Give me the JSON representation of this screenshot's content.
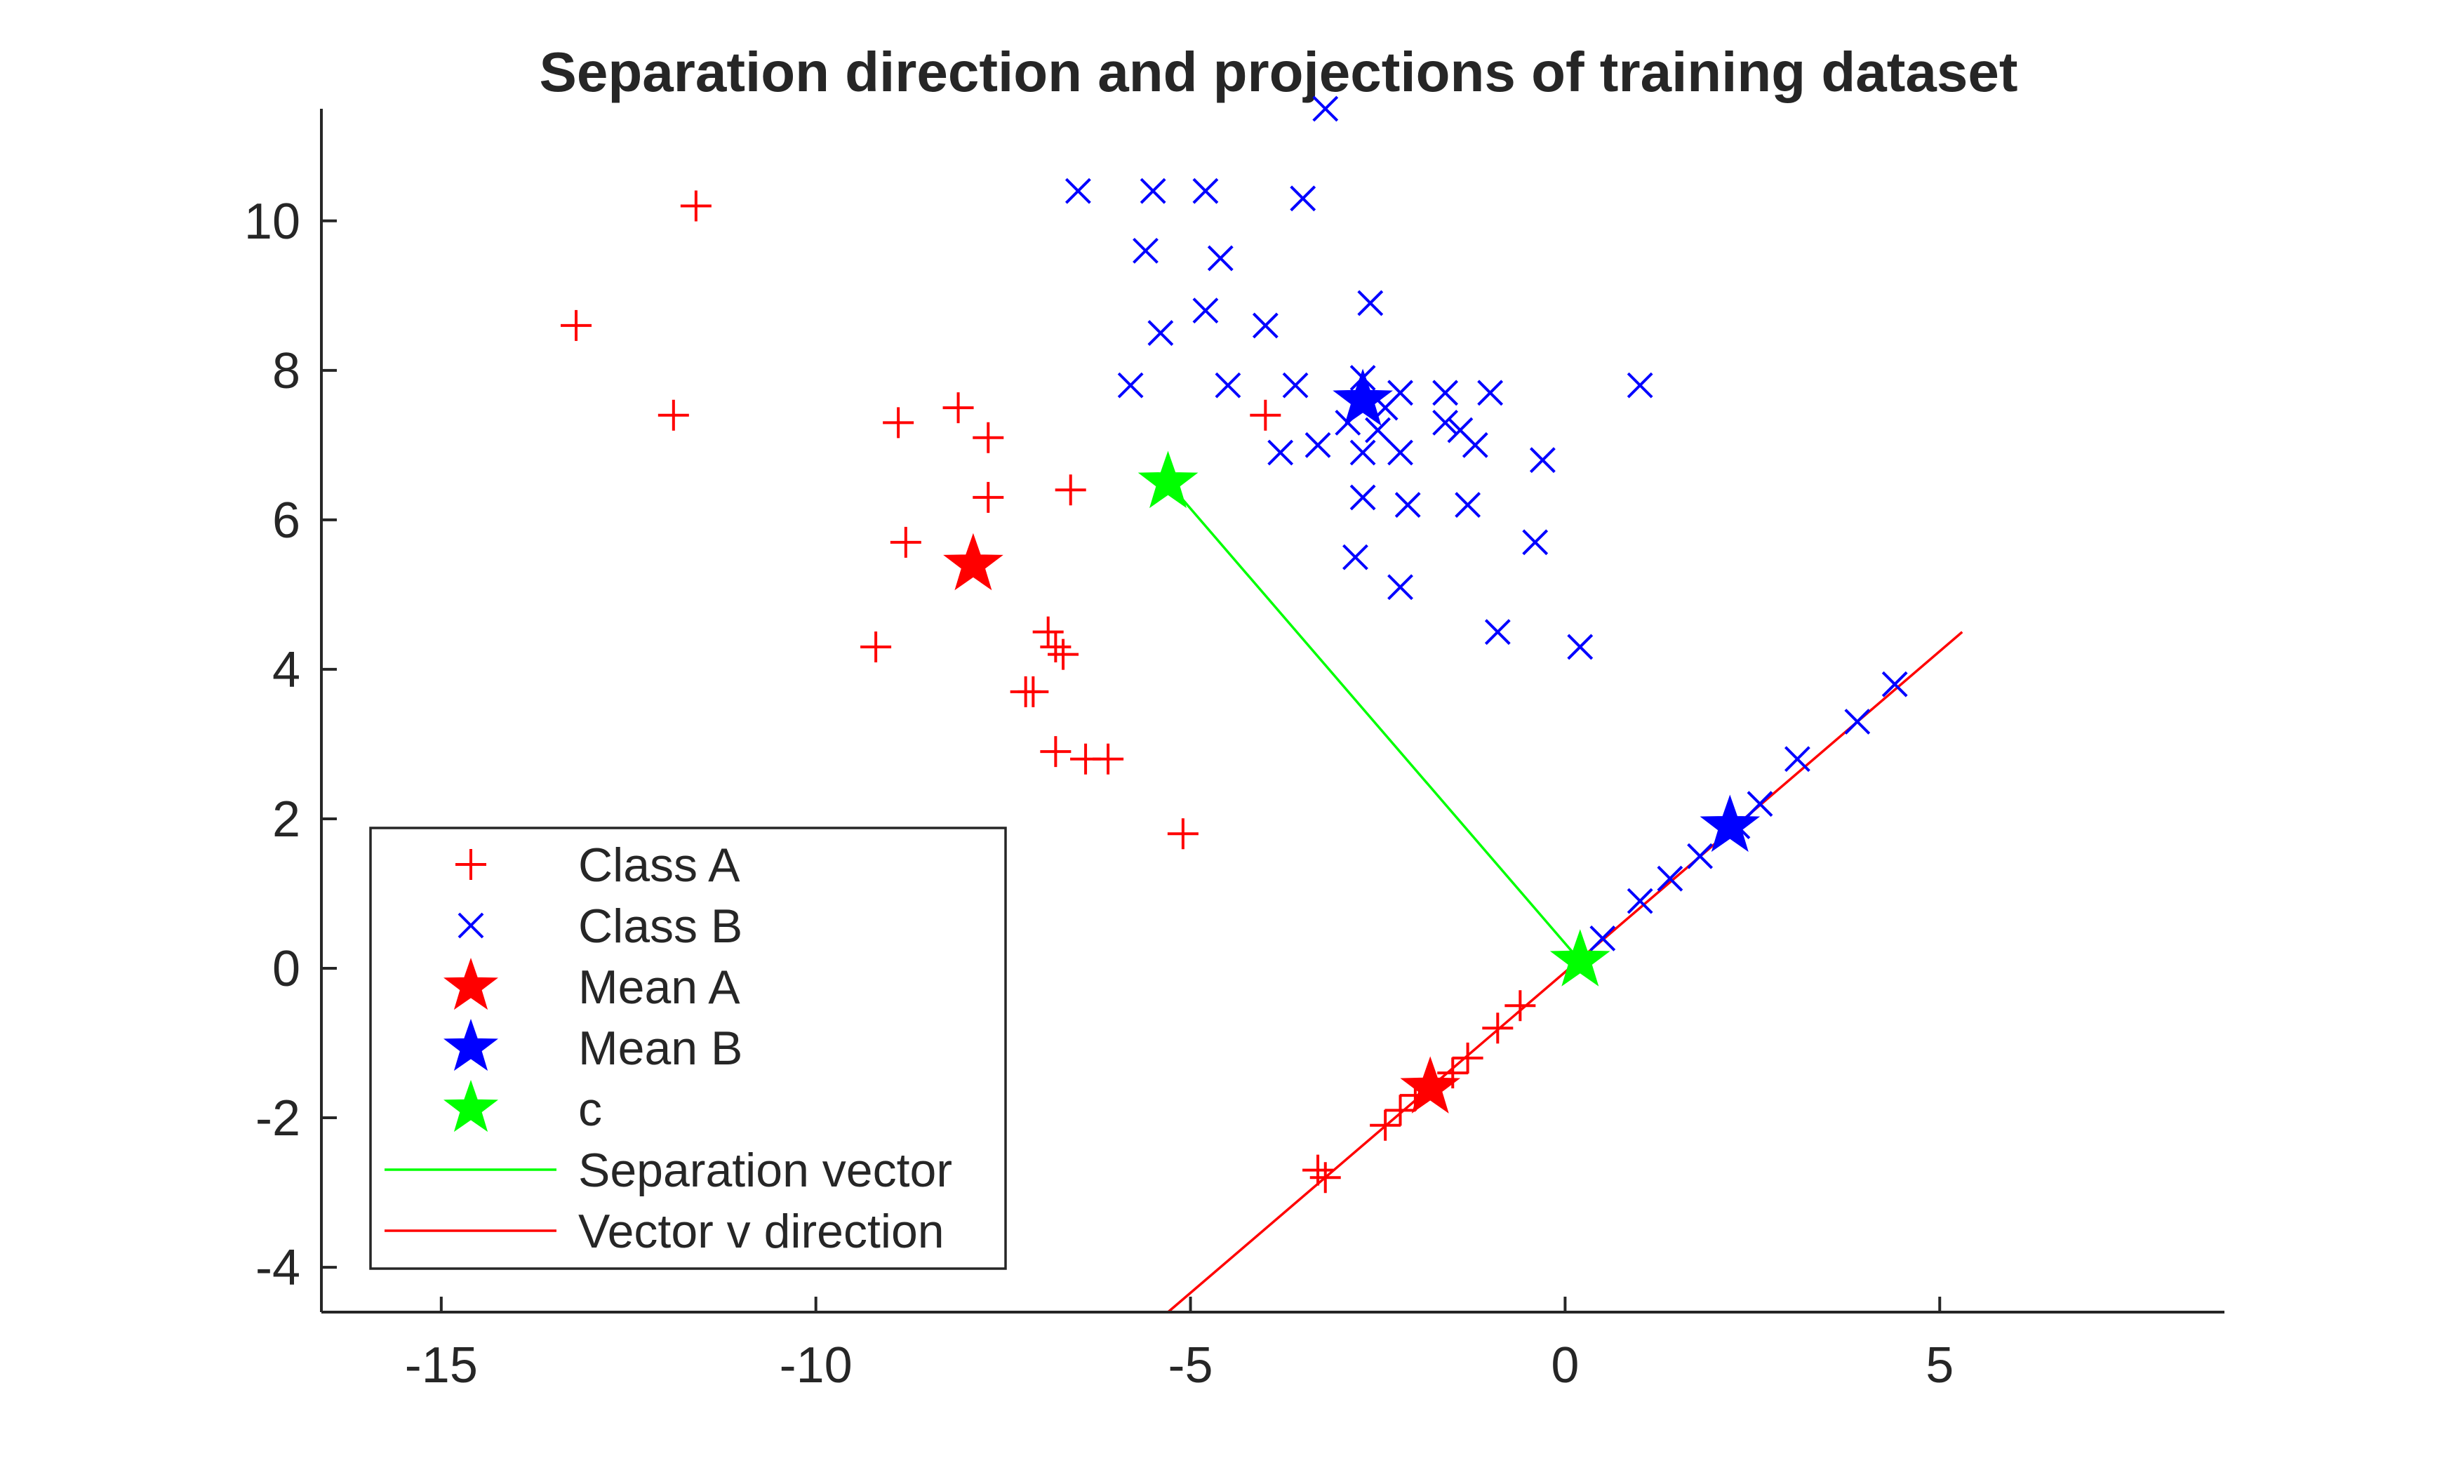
{
  "chart_data": {
    "type": "scatter",
    "title": "Separation direction and projections of training dataset",
    "xlabel": "",
    "ylabel": "",
    "xlim": [
      -16.6,
      8.8
    ],
    "ylim": [
      -4.6,
      11.5
    ],
    "xticks": [
      -15,
      -10,
      -5,
      0,
      5
    ],
    "yticks": [
      -4,
      -2,
      0,
      2,
      4,
      6,
      8,
      10
    ],
    "xtick_labels": [
      "-15",
      "-10",
      "-5",
      "0",
      "5"
    ],
    "ytick_labels": [
      "-4",
      "-2",
      "0",
      "2",
      "4",
      "6",
      "8",
      "10"
    ],
    "grid": false,
    "legend_position": "lower-left",
    "series": [
      {
        "name": "Class A",
        "marker": "plus",
        "color": "#ff0000",
        "points": [
          [
            -11.6,
            10.2
          ],
          [
            -13.2,
            8.6
          ],
          [
            -11.9,
            7.4
          ],
          [
            -8.9,
            7.3
          ],
          [
            -8.1,
            7.5
          ],
          [
            -7.7,
            7.1
          ],
          [
            -7.7,
            6.3
          ],
          [
            -6.6,
            6.4
          ],
          [
            -8.8,
            5.7
          ],
          [
            -9.2,
            4.3
          ],
          [
            -6.9,
            4.5
          ],
          [
            -6.8,
            4.3
          ],
          [
            -6.7,
            4.2
          ],
          [
            -7.1,
            3.7
          ],
          [
            -7.2,
            3.7
          ],
          [
            -6.8,
            2.9
          ],
          [
            -6.4,
            2.8
          ],
          [
            -6.1,
            2.8
          ],
          [
            -5.1,
            1.8
          ],
          [
            -4.0,
            7.4
          ],
          [
            -3.3,
            -2.7
          ],
          [
            -3.2,
            -2.8
          ],
          [
            -2.4,
            -2.1
          ],
          [
            -2.2,
            -1.9
          ],
          [
            -2.0,
            -1.7
          ],
          [
            -1.5,
            -1.4
          ],
          [
            -1.3,
            -1.2
          ],
          [
            -0.9,
            -0.8
          ],
          [
            -0.6,
            -0.5
          ]
        ]
      },
      {
        "name": "Class B",
        "marker": "x",
        "color": "#0000ff",
        "points": [
          [
            -3.2,
            11.5
          ],
          [
            -6.5,
            10.4
          ],
          [
            -5.5,
            10.4
          ],
          [
            -4.8,
            10.4
          ],
          [
            -3.5,
            10.3
          ],
          [
            -5.6,
            9.6
          ],
          [
            -4.6,
            9.5
          ],
          [
            -2.6,
            8.9
          ],
          [
            -4.8,
            8.8
          ],
          [
            -4.0,
            8.6
          ],
          [
            -5.4,
            8.5
          ],
          [
            -5.8,
            7.8
          ],
          [
            -4.5,
            7.8
          ],
          [
            -3.6,
            7.8
          ],
          [
            -2.7,
            7.9
          ],
          [
            -2.4,
            7.5
          ],
          [
            -2.2,
            7.7
          ],
          [
            -1.6,
            7.7
          ],
          [
            -1.0,
            7.7
          ],
          [
            1.0,
            7.8
          ],
          [
            -2.9,
            7.3
          ],
          [
            -2.5,
            7.2
          ],
          [
            -1.6,
            7.3
          ],
          [
            -1.4,
            7.2
          ],
          [
            -1.2,
            7.0
          ],
          [
            -3.3,
            7.0
          ],
          [
            -3.8,
            6.9
          ],
          [
            -2.7,
            6.9
          ],
          [
            -2.2,
            6.9
          ],
          [
            -0.3,
            6.8
          ],
          [
            -2.7,
            6.3
          ],
          [
            -2.1,
            6.2
          ],
          [
            -1.3,
            6.2
          ],
          [
            -0.4,
            5.7
          ],
          [
            -2.8,
            5.5
          ],
          [
            -2.2,
            5.1
          ],
          [
            -0.9,
            4.5
          ],
          [
            0.2,
            4.3
          ],
          [
            0.5,
            0.4
          ],
          [
            1.0,
            0.9
          ],
          [
            1.4,
            1.2
          ],
          [
            1.8,
            1.5
          ],
          [
            2.3,
            1.9
          ],
          [
            2.6,
            2.2
          ],
          [
            3.1,
            2.8
          ],
          [
            3.9,
            3.3
          ],
          [
            4.4,
            3.8
          ]
        ]
      }
    ],
    "highlights": [
      {
        "name": "Mean A",
        "marker": "star",
        "color": "#ff0000",
        "points": [
          [
            -7.9,
            5.4
          ],
          [
            -1.8,
            -1.6
          ]
        ]
      },
      {
        "name": "Mean B",
        "marker": "star",
        "color": "#0000ff",
        "points": [
          [
            -2.7,
            7.6
          ],
          [
            2.2,
            1.9
          ]
        ]
      },
      {
        "name": "c",
        "marker": "star",
        "color": "#00ff00",
        "points": [
          [
            -5.3,
            6.5
          ],
          [
            0.2,
            0.1
          ]
        ]
      }
    ],
    "lines": [
      {
        "name": "Separation vector",
        "color": "#00ff00",
        "from": [
          -5.3,
          6.5
        ],
        "to": [
          0.2,
          0.1
        ]
      },
      {
        "name": "Vector v direction",
        "color": "#ff0000",
        "from": [
          -5.3,
          -4.6
        ],
        "to": [
          5.3,
          4.5
        ]
      }
    ],
    "legend": [
      {
        "label": "Class A",
        "symbol": "plus",
        "color": "#ff0000"
      },
      {
        "label": "Class B",
        "symbol": "x",
        "color": "#0000ff"
      },
      {
        "label": "Mean A",
        "symbol": "star",
        "color": "#ff0000"
      },
      {
        "label": "Mean B",
        "symbol": "star",
        "color": "#0000ff"
      },
      {
        "label": "c",
        "symbol": "star",
        "color": "#00ff00"
      },
      {
        "label": "Separation vector",
        "symbol": "line",
        "color": "#00ff00"
      },
      {
        "label": "Vector v direction",
        "symbol": "line",
        "color": "#ff0000"
      }
    ]
  }
}
